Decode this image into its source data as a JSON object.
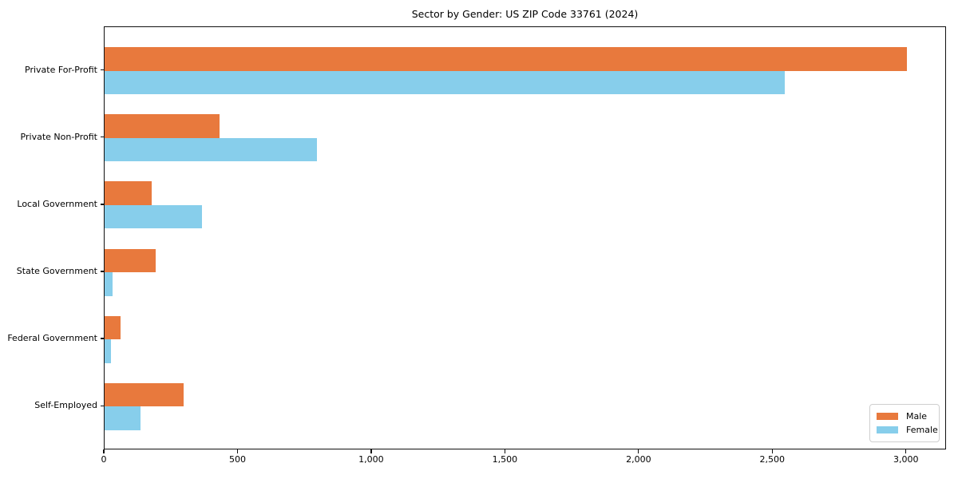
{
  "title": "Sector by Gender: US ZIP Code 33761 (2024)",
  "colors": {
    "male": "#e8793d",
    "female": "#87ceeb",
    "axis": "#111111",
    "legend_border": "#cfcfcf",
    "background": "#ffffff"
  },
  "legend": {
    "position": "lower right",
    "items": [
      {
        "label": "Male"
      },
      {
        "label": "Female"
      }
    ]
  },
  "chart_data": {
    "type": "bar",
    "orientation": "horizontal",
    "title": "Sector by Gender: US ZIP Code 33761 (2024)",
    "categories": [
      "Private For-Profit",
      "Private Non-Profit",
      "Local Government",
      "State Government",
      "Federal Government",
      "Self-Employed"
    ],
    "series": [
      {
        "name": "Male",
        "color": "#e8793d",
        "values": [
          3000,
          430,
          175,
          190,
          60,
          295
        ]
      },
      {
        "name": "Female",
        "color": "#87ceeb",
        "values": [
          2545,
          795,
          365,
          30,
          25,
          135
        ]
      }
    ],
    "xlabel": "",
    "ylabel": "",
    "xlim": [
      0,
      3150
    ],
    "x_ticks": [
      0,
      500,
      1000,
      1500,
      2000,
      2500,
      3000
    ],
    "x_tick_labels": [
      "0",
      "500",
      "1,000",
      "1,500",
      "2,000",
      "2,500",
      "3,000"
    ],
    "grid": false,
    "legend_position": "lower right"
  }
}
